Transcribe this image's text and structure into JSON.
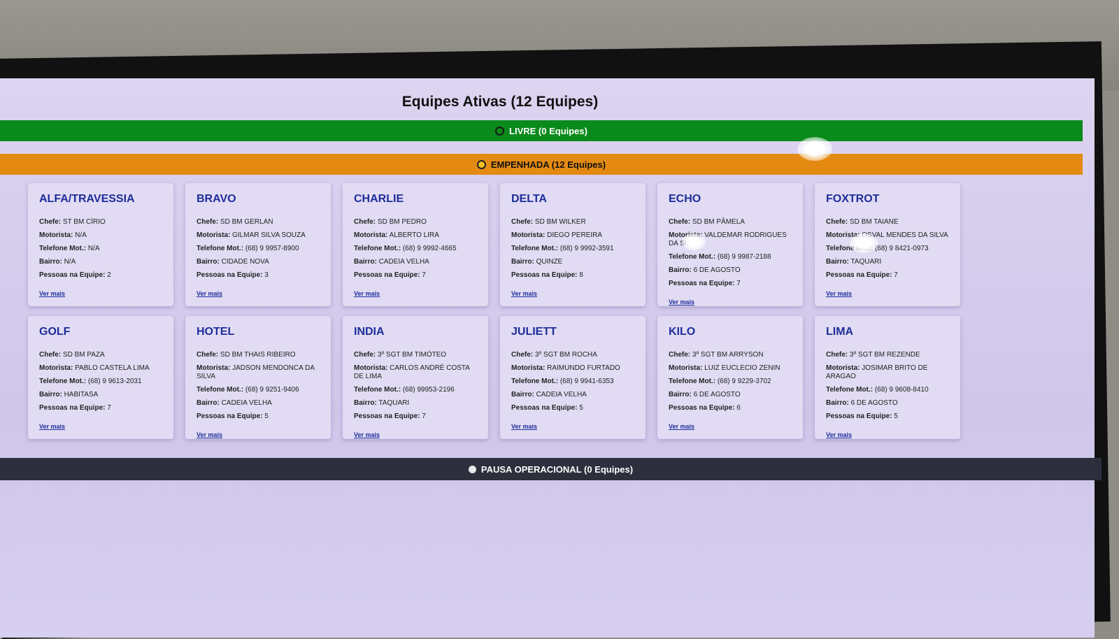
{
  "header": {
    "title": "Equipes Ativas (12 Equipes)"
  },
  "status_bars": {
    "livre": {
      "label": "LIVRE (0 Equipes)",
      "color": "#0a8a1a"
    },
    "empenhada": {
      "label": "EMPENHADA (12 Equipes)",
      "color": "#e48a12"
    },
    "pausa": {
      "label": "PAUSA OPERACIONAL (0 Equipes)",
      "color": "#2d2f3d"
    }
  },
  "labels": {
    "chefe": "Chefe:",
    "motorista": "Motorista:",
    "telefone": "Telefone Mot.:",
    "bairro": "Bairro:",
    "pessoas": "Pessoas na Equipe:",
    "ver_mais": "Ver mais"
  },
  "teams": [
    {
      "name": "ALFA/TRAVESSIA",
      "chefe": "ST BM CÍRIO",
      "motorista": "N/A",
      "telefone": "N/A",
      "bairro": "N/A",
      "pessoas": "2"
    },
    {
      "name": "BRAVO",
      "chefe": "SD BM GERLAN",
      "motorista": "GILMAR SILVA SOUZA",
      "telefone": "(68) 9 9957-8900",
      "bairro": "CIDADE NOVA",
      "pessoas": "3"
    },
    {
      "name": "CHARLIE",
      "chefe": "SD BM PEDRO",
      "motorista": "ALBERTO LIRA",
      "telefone": "(68) 9 9992-4665",
      "bairro": "CADEIA VELHA",
      "pessoas": "7"
    },
    {
      "name": "DELTA",
      "chefe": "SD BM WILKER",
      "motorista": "DIEGO PEREIRA",
      "telefone": "(68) 9 9992-3591",
      "bairro": "QUINZE",
      "pessoas": "8"
    },
    {
      "name": "ECHO",
      "chefe": "SD BM PÂMELA",
      "motorista": "VALDEMAR RODRIGUES DA SILVA",
      "telefone": "(68) 9 9987-2188",
      "bairro": "6 DE AGOSTO",
      "pessoas": "7"
    },
    {
      "name": "FOXTROT",
      "chefe": "SD BM TAIANE",
      "motorista": "OSVAL MENDES DA SILVA",
      "telefone": "(68) 9 8421-0973",
      "bairro": "TAQUARI",
      "pessoas": "7"
    },
    {
      "name": "GOLF",
      "chefe": "SD BM PAZA",
      "motorista": "PABLO CASTELA LIMA",
      "telefone": "(68) 9 9613-2031",
      "bairro": "HABITASA",
      "pessoas": "7"
    },
    {
      "name": "HOTEL",
      "chefe": "SD BM THAIS RIBEIRO",
      "motorista": "JADSON MENDONCA DA SILVA",
      "telefone": "(68) 9 9251-9406",
      "bairro": "CADEIA VELHA",
      "pessoas": "5"
    },
    {
      "name": "INDIA",
      "chefe": "3º SGT BM TIMÓTEO",
      "motorista": "CARLOS ANDRÉ COSTA DE LIMA",
      "telefone": "(68) 99953-2196",
      "bairro": "TAQUARI",
      "pessoas": "7"
    },
    {
      "name": "JULIETT",
      "chefe": "3º SGT BM ROCHA",
      "motorista": "RAIMUNDO FURTADO",
      "telefone": "(68) 9 9941-6353",
      "bairro": "CADEIA VELHA",
      "pessoas": "5"
    },
    {
      "name": "KILO",
      "chefe": "3º SGT BM ARRYSON",
      "motorista": "LUIZ EUCLECIO ZENIN",
      "telefone": "(68) 9 9229-3702",
      "bairro": "6 DE AGOSTO",
      "pessoas": "6"
    },
    {
      "name": "LIMA",
      "chefe": "3º SGT BM REZENDE",
      "motorista": "JOSIMAR BRITO DE ARAGAO",
      "telefone": "(68) 9 9608-8410",
      "bairro": "6 DE AGOSTO",
      "pessoas": "5"
    }
  ]
}
